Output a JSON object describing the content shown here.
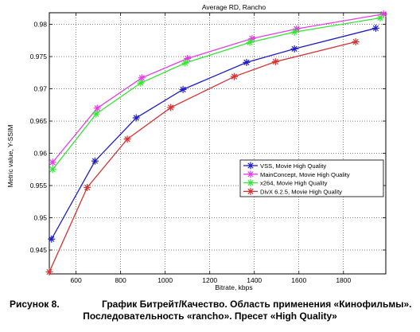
{
  "chart_data": {
    "type": "line",
    "title": "Average RD, Rancho",
    "xlabel": "Bitrate, kbps",
    "ylabel": "Metric value, Y-SSIM",
    "xlim": [
      480,
      1990
    ],
    "ylim": [
      0.9413,
      0.9818
    ],
    "xticks": [
      600,
      800,
      1000,
      1200,
      1400,
      1600,
      1800
    ],
    "yticks": [
      0.945,
      0.95,
      0.955,
      0.96,
      0.965,
      0.97,
      0.975,
      0.98
    ],
    "grid": true,
    "legend_position": "center-right",
    "series": [
      {
        "name": "VSS, Movie High Quality",
        "color": "#1f1fc8",
        "x": [
          490,
          685,
          870,
          1080,
          1365,
          1580,
          1945
        ],
        "y": [
          0.9467,
          0.9588,
          0.9655,
          0.9699,
          0.9741,
          0.9762,
          0.9794
        ]
      },
      {
        "name": "MainConcept, Movie High Quality",
        "color": "#e63ce6",
        "x": [
          495,
          695,
          895,
          1100,
          1390,
          1590,
          1980
        ],
        "y": [
          0.9586,
          0.967,
          0.9717,
          0.9747,
          0.9778,
          0.9793,
          0.9816
        ]
      },
      {
        "name": "x264, Movie High Quality",
        "color": "#32e632",
        "x": [
          495,
          690,
          890,
          1090,
          1380,
          1580,
          1965
        ],
        "y": [
          0.9575,
          0.9661,
          0.9709,
          0.974,
          0.9772,
          0.9788,
          0.981
        ]
      },
      {
        "name": "DivX 6.2.5, Movie High Quality",
        "color": "#d63232",
        "x": [
          480,
          650,
          830,
          1025,
          1310,
          1495,
          1855
        ],
        "y": [
          0.9416,
          0.9547,
          0.9622,
          0.9671,
          0.9719,
          0.9742,
          0.9773
        ]
      }
    ]
  },
  "caption": {
    "label": "Рисунок 8.",
    "line1": "График Битрейт/Качество. Область применения «Кинофильмы».",
    "line2": "Последовательность «rancho». Пресет «High Quality»"
  }
}
